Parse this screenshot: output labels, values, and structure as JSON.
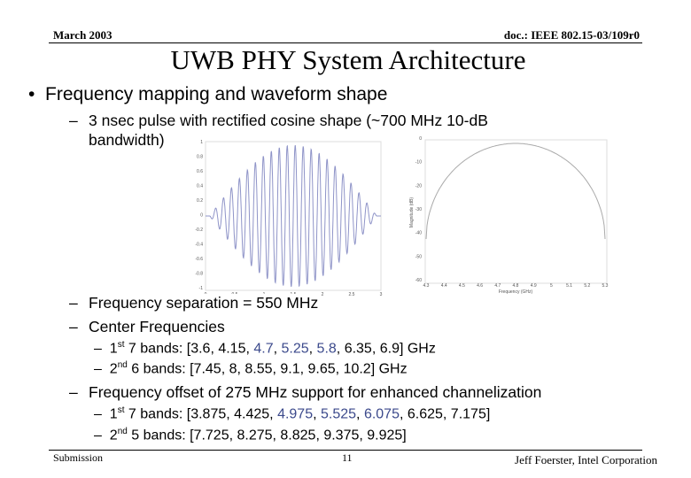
{
  "header": {
    "date": "March 2003",
    "doc": "doc.: IEEE 802.15-03/109r0"
  },
  "title": "UWB PHY System Architecture",
  "bullet": "Frequency mapping and waveform shape",
  "pulse": {
    "line1": "3 nsec pulse with rectified cosine shape (~700 MHz 10-dB",
    "line2": "bandwidth)"
  },
  "waveform_plot": {
    "yticks": [
      "1",
      "0.8",
      "0.6",
      "0.4",
      "0.2",
      "0",
      "-0.2",
      "-0.4",
      "-0.6",
      "-0.8",
      "-1"
    ],
    "xticks": [
      "0",
      "0.5",
      "1",
      "1.5",
      "2",
      "2.5",
      "3"
    ]
  },
  "spectrum_plot": {
    "ylabel": "Magnitude (dB)",
    "xlabel": "Frequency (GHz)",
    "yticks": [
      "0",
      "-10",
      "-20",
      "-30",
      "-40",
      "-50",
      "-60"
    ],
    "xticks": [
      "4.3",
      "4.4",
      "4.5",
      "4.6",
      "4.7",
      "4.8",
      "4.9",
      "5",
      "5.1",
      "5.2",
      "5.3"
    ]
  },
  "separation": "Frequency separation = 550 MHz",
  "center": "Center Frequencies",
  "center_bands": [
    [
      "1",
      "st",
      " 7 bands: [3.6, 4.15, ",
      "4.7",
      ", ",
      "5.25",
      ", ",
      "5.8",
      ", 6.35, 6.9] GHz"
    ],
    [
      "2",
      "nd",
      " 6 bands: [7.45, 8, 8.55, 9.1, 9.65, 10.2] GHz"
    ]
  ],
  "offset": "Frequency offset of 275 MHz support for enhanced channelization",
  "offset_bands": [
    [
      "1",
      "st",
      " 7 bands: [3.875, 4.425, ",
      "4.975",
      ", ",
      "5.525",
      ", ",
      "6.075",
      ", 6.625, 7.175]"
    ],
    [
      "2",
      "nd",
      " 5 bands: [7.725, 8.275, 8.825, 9.375, 9.925]"
    ]
  ],
  "footer": {
    "left": "Submission",
    "page": "11",
    "right": "Jeff Foerster, Intel Corporation"
  }
}
